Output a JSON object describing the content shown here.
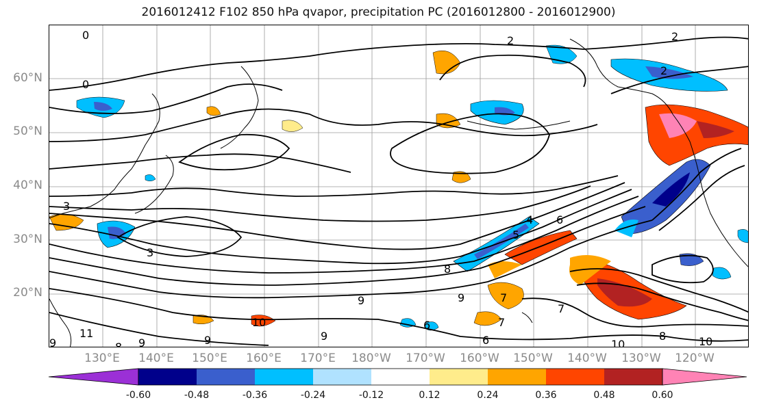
{
  "title": "2016012412 F102 850 hPa qvapor, precipitation PC (2016012800 - 2016012900)",
  "lat_labels": [
    "60°N",
    "50°N",
    "40°N",
    "30°N",
    "20°N"
  ],
  "lon_labels": [
    "130°E",
    "140°E",
    "150°E",
    "160°E",
    "170°E",
    "180°W",
    "170°W",
    "160°W",
    "150°W",
    "140°W",
    "130°W",
    "120°W"
  ],
  "contour_labels": [
    "0",
    "2",
    "2",
    "2",
    "0",
    "3",
    "3",
    "4",
    "5",
    "6",
    "7",
    "8",
    "9",
    "9",
    "9",
    "10",
    "10",
    "10",
    "11",
    "8",
    "9",
    "9",
    "7",
    "7",
    "6",
    "6",
    "8",
    "9"
  ],
  "colorbar": {
    "ticks": [
      "-0.60",
      "-0.48",
      "-0.36",
      "-0.24",
      "-0.12",
      "0.12",
      "0.24",
      "0.36",
      "0.48",
      "0.60"
    ],
    "colors": [
      "#9b30d6",
      "#00008b",
      "#3a5fcd",
      "#00bfff",
      "#b0e2ff",
      "#ffffff",
      "#ffec8b",
      "#ffa500",
      "#ff4500",
      "#b22222",
      "#ff83b5"
    ]
  },
  "colors": {
    "pos_light": "#ffec8b",
    "pos_mid": "#ffa500",
    "pos_strong": "#ff4500",
    "pos_vstrong": "#b22222",
    "pos_max": "#ff83b5",
    "neg_light": "#b0e2ff",
    "neg_mid": "#00bfff",
    "neg_strong": "#3a5fcd",
    "neg_vstrong": "#00008b"
  }
}
